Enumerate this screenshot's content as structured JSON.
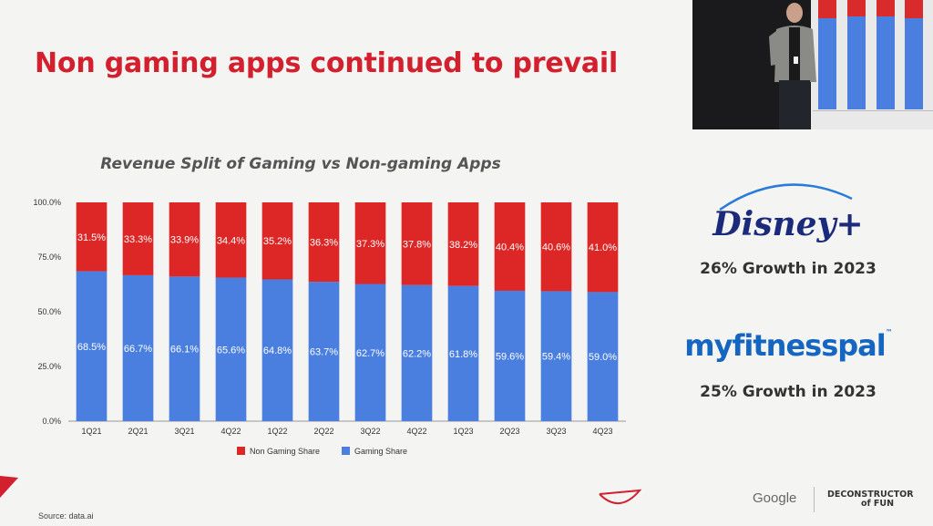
{
  "slide": {
    "title": "Non gaming apps continued to prevail",
    "source": "Source:  data.ai"
  },
  "chart_data": {
    "type": "bar",
    "stacked": true,
    "title": "Revenue Split of Gaming vs Non-gaming Apps",
    "categories": [
      "1Q21",
      "2Q21",
      "3Q21",
      "4Q22",
      "1Q22",
      "2Q22",
      "3Q22",
      "4Q22",
      "1Q23",
      "2Q23",
      "3Q23",
      "4Q23"
    ],
    "series": [
      {
        "name": "Gaming Share",
        "color": "#4a7fe0",
        "values": [
          68.5,
          66.7,
          66.1,
          65.6,
          64.8,
          63.7,
          62.7,
          62.2,
          61.8,
          59.6,
          59.4,
          59.0
        ],
        "labels": [
          "68.5%",
          "66.7%",
          "66.1%",
          "65.6%",
          "64.8%",
          "63.7%",
          "62.7%",
          "62.2%",
          "61.8%",
          "59.6%",
          "59.4%",
          "59.0%"
        ]
      },
      {
        "name": "Non Gaming Share",
        "color": "#dd2727",
        "values": [
          31.5,
          33.3,
          33.9,
          34.4,
          35.2,
          36.3,
          37.3,
          37.8,
          38.2,
          40.4,
          40.6,
          41.0
        ],
        "labels": [
          "31.5%",
          "33.3%",
          "33.9%",
          "34.4%",
          "35.2%",
          "36.3%",
          "37.3%",
          "37.8%",
          "38.2%",
          "40.4%",
          "40.6%",
          "41.0%"
        ]
      }
    ],
    "legend_order": [
      "Non Gaming Share",
      "Gaming Share"
    ],
    "legend_position": "bottom",
    "yticks": [
      "0.0%",
      "25.0%",
      "50.0%",
      "75.0%",
      "100.0%"
    ],
    "ylim": [
      0,
      100
    ],
    "grid": false
  },
  "brands": {
    "disney_logo": "Disney+",
    "disney_growth": "26% Growth in 2023",
    "mfp_logo": "myfitnesspal",
    "mfp_growth": "25% Growth in 2023"
  },
  "footer": {
    "google": "Google",
    "dof_line1": "DECONSTRUCTOR",
    "dof_line2": "of FUN"
  },
  "colors": {
    "title_red": "#d3202e",
    "bar_red": "#dd2727",
    "bar_blue": "#4a7fe0",
    "logo_blue": "#1566c0",
    "disney_navy": "#1b2a7a"
  }
}
